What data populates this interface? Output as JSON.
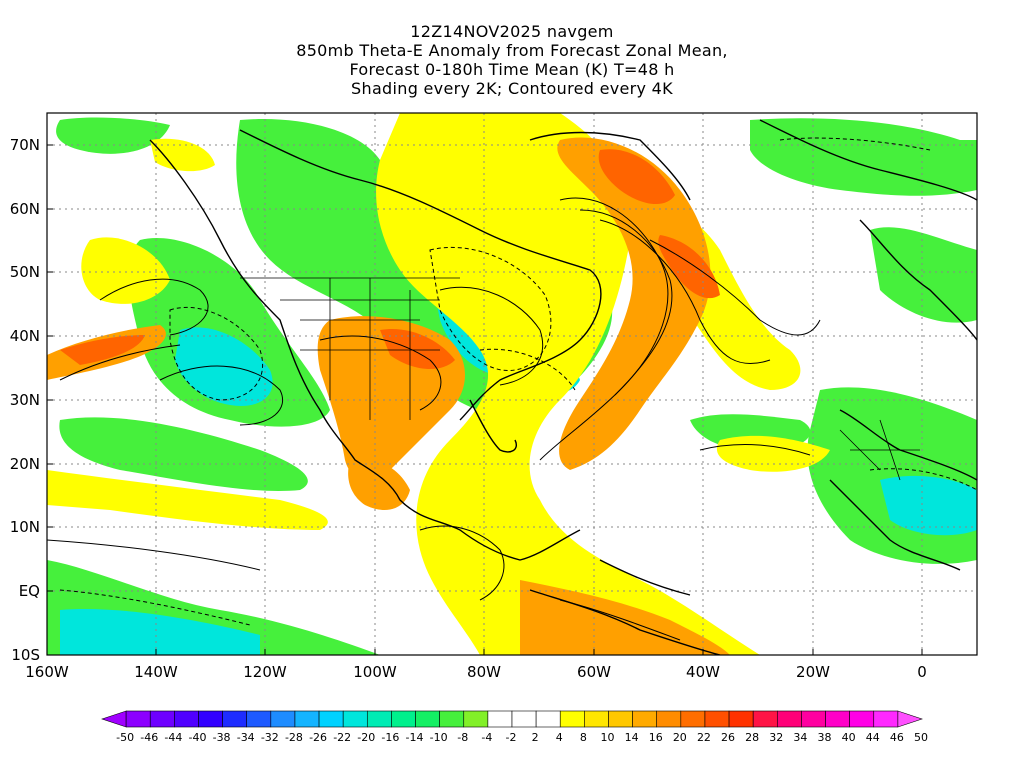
{
  "title_lines": [
    "12Z14NOV2025 navgem",
    "850mb Theta-E Anomaly from Forecast Zonal Mean,",
    "Forecast 0-180h Time Mean (K) T=48 h",
    "Shading every 2K; Contoured every 4K"
  ],
  "lat_labels": [
    "70N",
    "60N",
    "50N",
    "40N",
    "30N",
    "20N",
    "10N",
    "EQ",
    "10S"
  ],
  "lon_labels": [
    "160W",
    "140W",
    "120W",
    "100W",
    "80W",
    "60W",
    "40W",
    "20W",
    "0"
  ],
  "colorbar": {
    "labels": [
      "-50",
      "-46",
      "-44",
      "-40",
      "-38",
      "-34",
      "-32",
      "-28",
      "-26",
      "-22",
      "-20",
      "-16",
      "-14",
      "-10",
      "-8",
      "-4",
      "-2",
      "2",
      "4",
      "8",
      "10",
      "14",
      "16",
      "20",
      "22",
      "26",
      "28",
      "32",
      "34",
      "38",
      "40",
      "44",
      "46",
      "50"
    ],
    "colors": [
      "#a000ff",
      "#8c00ff",
      "#6e00ff",
      "#5000ff",
      "#3200ff",
      "#1e2cff",
      "#1e5aff",
      "#1e8cff",
      "#14b4ff",
      "#00d2ff",
      "#00e6dc",
      "#00ecb4",
      "#00f08c",
      "#14f064",
      "#46f03c",
      "#82f028",
      "#ffffff",
      "#ffffff",
      "#ffffff",
      "#ffff00",
      "#ffe600",
      "#ffc800",
      "#ffaa00",
      "#ff8c00",
      "#ff6e00",
      "#ff5000",
      "#ff3200",
      "#ff1446",
      "#ff0078",
      "#ff00a0",
      "#ff00c8",
      "#ff00e6",
      "#ff28ff",
      "#ff50ff"
    ]
  },
  "colors": {
    "land_outline": "#000000",
    "grid": "#888888",
    "warm": "#ffa000",
    "warm_strong": "#ff6400",
    "yellow": "#ffff00",
    "green": "#46f03c",
    "cyan": "#00e6dc"
  }
}
